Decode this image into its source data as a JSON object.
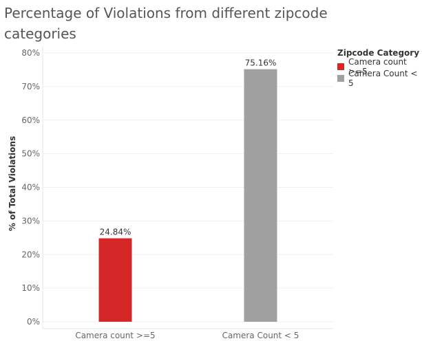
{
  "chart_data": {
    "type": "bar",
    "title": "Percentage of Violations from different zipcode categories",
    "ylabel": "% of Total Violations",
    "xlabel": "",
    "categories": [
      "Camera count >=5",
      "Camera Count < 5"
    ],
    "values": [
      24.84,
      75.16
    ],
    "value_labels": [
      "24.84%",
      "75.16%"
    ],
    "colors": [
      "#d62728",
      "#a0a0a0"
    ],
    "ylim": [
      0,
      80
    ],
    "yticks": [
      0,
      10,
      20,
      30,
      40,
      50,
      60,
      70,
      80
    ],
    "ytick_labels": [
      "0%",
      "10%",
      "20%",
      "30%",
      "40%",
      "50%",
      "60%",
      "70%",
      "80%"
    ],
    "grid": true,
    "legend": {
      "title": "Zipcode Category",
      "placement": "top-right",
      "items": [
        {
          "label": "Camera count >=5",
          "color": "#d62728"
        },
        {
          "label": "Camera Count < 5",
          "color": "#a0a0a0"
        }
      ]
    }
  }
}
